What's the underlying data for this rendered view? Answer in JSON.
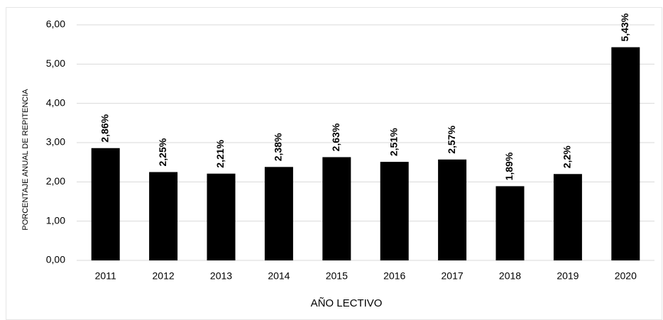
{
  "chart_data": {
    "type": "bar",
    "categories": [
      "2011",
      "2012",
      "2013",
      "2014",
      "2015",
      "2016",
      "2017",
      "2018",
      "2019",
      "2020"
    ],
    "values": [
      2.86,
      2.25,
      2.21,
      2.38,
      2.63,
      2.51,
      2.57,
      1.89,
      2.2,
      5.43
    ],
    "value_labels": [
      "2,86%",
      "2,25%",
      "2,21%",
      "2,38%",
      "2,63%",
      "2,51%",
      "2,57%",
      "1,89%",
      "2,2%",
      "5,43%"
    ],
    "color": "#000000",
    "ylim": [
      0,
      6
    ],
    "yticks": [
      {
        "value": 0,
        "label": "0,00"
      },
      {
        "value": 1,
        "label": "1,00"
      },
      {
        "value": 2,
        "label": "2,00"
      },
      {
        "value": 3,
        "label": "3,00"
      },
      {
        "value": 4,
        "label": "4,00"
      },
      {
        "value": 5,
        "label": "5,00"
      },
      {
        "value": 6,
        "label": "6,00"
      }
    ],
    "ylabel": "PORCENTAJE ANUAL DE REPITENCIA",
    "xlabel": "AÑO LECTIVO",
    "grid": true
  }
}
